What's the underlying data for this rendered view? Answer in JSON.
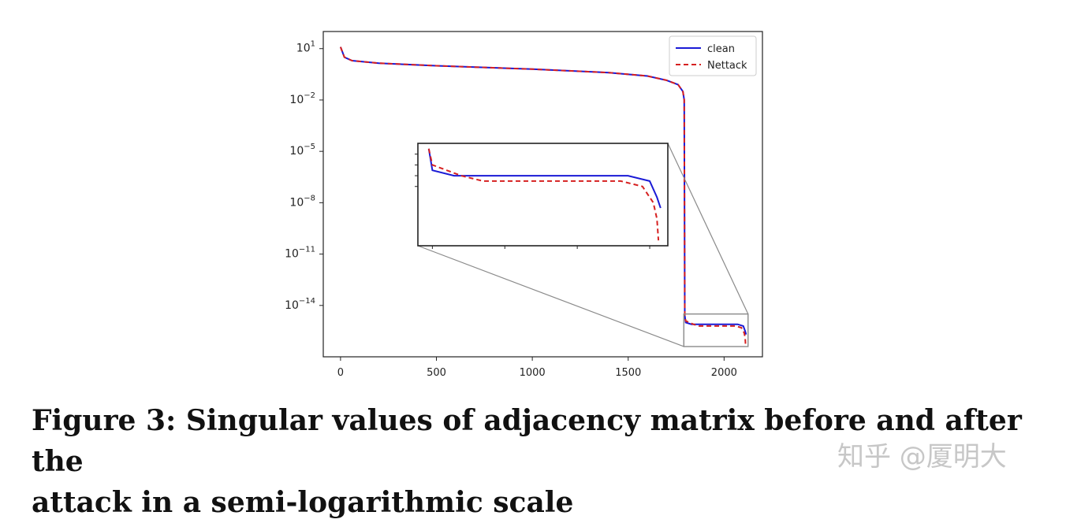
{
  "caption": {
    "line1": "Figure 3: Singular values of adjacency matrix before and after the",
    "line2": "attack in a semi-logarithmic scale"
  },
  "watermark": "知乎 @厦明大",
  "chart_data": {
    "type": "line",
    "title": "",
    "xlabel": "",
    "ylabel": "",
    "yscale": "log",
    "xlim": [
      -90,
      2200
    ],
    "ylim_exponent": [
      -17,
      2
    ],
    "xticks": [
      {
        "value": 0,
        "label": "0"
      },
      {
        "value": 500,
        "label": "500"
      },
      {
        "value": 1000,
        "label": "1000"
      },
      {
        "value": 1500,
        "label": "1500"
      },
      {
        "value": 2000,
        "label": "2000"
      }
    ],
    "yticks": [
      {
        "exponent": 1,
        "base": "10",
        "sup": "1"
      },
      {
        "exponent": -2,
        "base": "10",
        "sup": "−2"
      },
      {
        "exponent": -5,
        "base": "10",
        "sup": "−5"
      },
      {
        "exponent": -8,
        "base": "10",
        "sup": "−8"
      },
      {
        "exponent": -11,
        "base": "10",
        "sup": "−11"
      },
      {
        "exponent": -14,
        "base": "10",
        "sup": "−14"
      }
    ],
    "legend": {
      "placement": "upper right"
    },
    "colors": {
      "clean": "#1a1ad6",
      "nettack": "#d62020",
      "frame": "#222222",
      "zoom": "#8a8a8a"
    },
    "series": [
      {
        "name": "clean",
        "style": "solid",
        "points_log10": [
          [
            0,
            1.1
          ],
          [
            20,
            0.5
          ],
          [
            60,
            0.3
          ],
          [
            200,
            0.15
          ],
          [
            500,
            0.0
          ],
          [
            1000,
            -0.2
          ],
          [
            1400,
            -0.4
          ],
          [
            1600,
            -0.6
          ],
          [
            1700,
            -0.85
          ],
          [
            1760,
            -1.1
          ],
          [
            1785,
            -1.5
          ],
          [
            1792,
            -2.0
          ],
          [
            1795,
            -14.6
          ],
          [
            1800,
            -15.0
          ],
          [
            1830,
            -15.1
          ],
          [
            1860,
            -15.1
          ],
          [
            1900,
            -15.1
          ],
          [
            2070,
            -15.1
          ],
          [
            2100,
            -15.2
          ],
          [
            2110,
            -15.5
          ],
          [
            2115,
            -15.7
          ]
        ]
      },
      {
        "name": "Nettack",
        "style": "dashed",
        "points_log10": [
          [
            0,
            1.1
          ],
          [
            20,
            0.5
          ],
          [
            60,
            0.3
          ],
          [
            200,
            0.15
          ],
          [
            500,
            0.0
          ],
          [
            1000,
            -0.2
          ],
          [
            1400,
            -0.4
          ],
          [
            1600,
            -0.6
          ],
          [
            1700,
            -0.85
          ],
          [
            1760,
            -1.1
          ],
          [
            1785,
            -1.5
          ],
          [
            1792,
            -2.0
          ],
          [
            1795,
            -14.6
          ],
          [
            1800,
            -14.9
          ],
          [
            1840,
            -15.1
          ],
          [
            1870,
            -15.2
          ],
          [
            1900,
            -15.2
          ],
          [
            2060,
            -15.2
          ],
          [
            2090,
            -15.3
          ],
          [
            2105,
            -15.6
          ],
          [
            2110,
            -15.9
          ],
          [
            2112,
            -16.3
          ]
        ]
      }
    ],
    "inset": {
      "xlim": [
        1780,
        2125
      ],
      "ylim_exponent": [
        -16.4,
        -14.5
      ],
      "x_minor_ticks": [
        1800,
        1900,
        2000,
        2100
      ],
      "y_minor_tick_exponents": [
        -14.7,
        -14.9,
        -15.1,
        -15.3
      ]
    },
    "zoom_box": {
      "xlim": [
        1790,
        2125
      ],
      "ylim_exponent": [
        -16.4,
        -14.5
      ]
    }
  }
}
